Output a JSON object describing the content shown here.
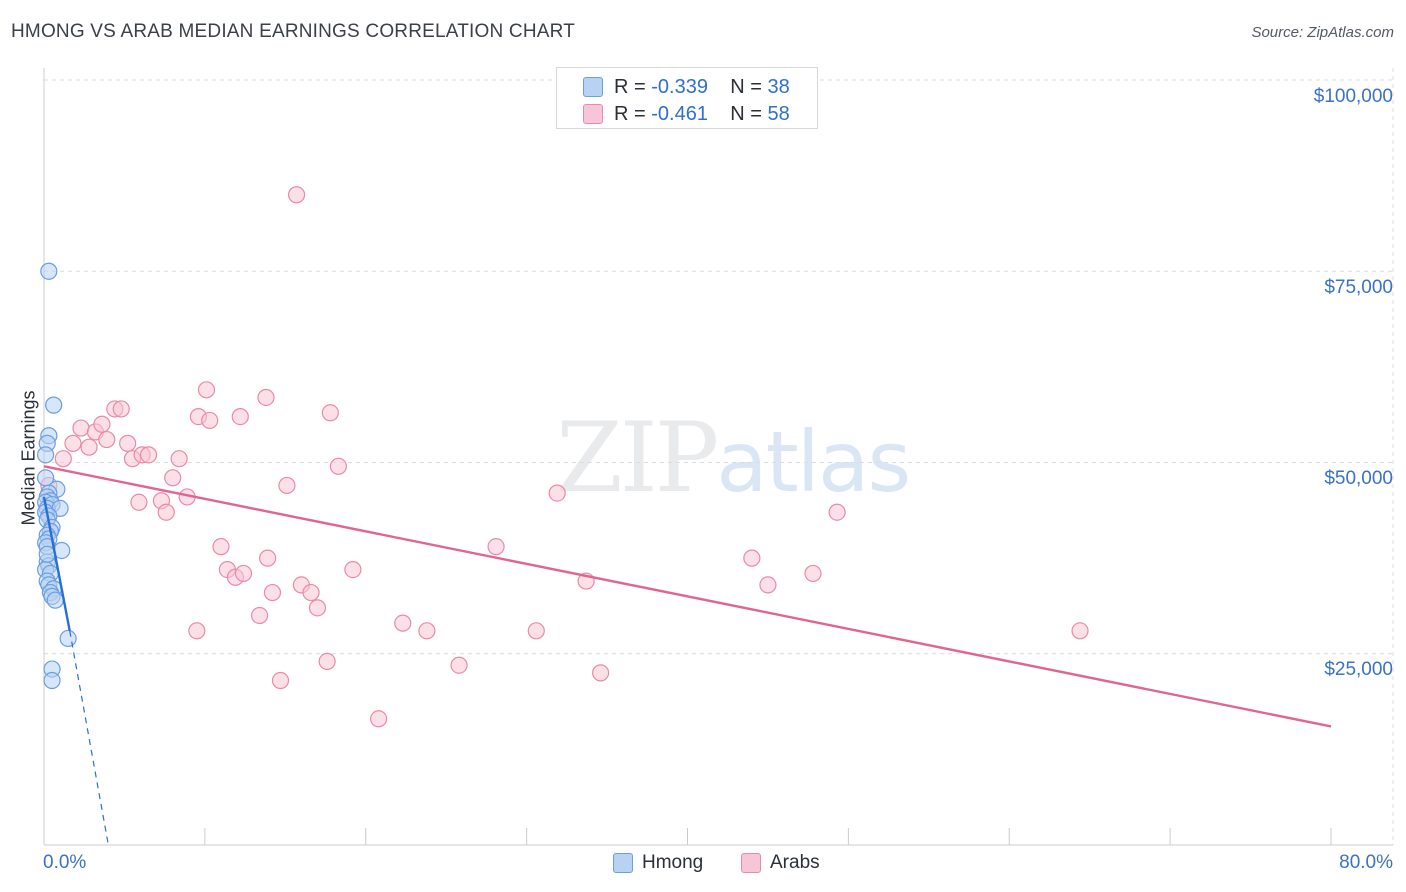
{
  "header": {
    "title": "HMONG VS ARAB MEDIAN EARNINGS CORRELATION CHART",
    "source": "Source: ZipAtlas.com"
  },
  "watermark": {
    "zip": "ZIP",
    "atlas": "atlas"
  },
  "legend_top": {
    "rows": [
      {
        "r_label": "R =",
        "r_value": "-0.339",
        "n_label": "N =",
        "n_value": "38"
      },
      {
        "r_label": "R =",
        "r_value": "-0.461",
        "n_label": "N =",
        "n_value": "58"
      }
    ]
  },
  "legend_bottom": {
    "hmong": "Hmong",
    "arabs": "Arabs"
  },
  "axes": {
    "ylabel": "Median Earnings",
    "yticks": [
      "$100,000",
      "$75,000",
      "$50,000",
      "$25,000"
    ],
    "x_start_label": "0.0%",
    "x_end_label": "80.0%"
  },
  "colors": {
    "hmong": "#6a9fe0",
    "hmong_fill": "#b8d2f4",
    "hmong_line": "#2a6fd4",
    "arabs": "#e98aa9",
    "arabs_fill": "#f7c6d6",
    "arabs_line": "#e0658f",
    "grid": "#d9dce1",
    "tick_text": "#3a72c9"
  },
  "chart_data": {
    "type": "scatter",
    "title": "HMONG VS ARAB MEDIAN EARNINGS CORRELATION CHART",
    "xlabel": "",
    "ylabel": "Median Earnings",
    "xlim": [
      0,
      80
    ],
    "ylim": [
      0,
      100000
    ],
    "yticks": [
      25000,
      50000,
      75000,
      100000
    ],
    "grid": true,
    "series": [
      {
        "name": "Hmong",
        "R": -0.339,
        "N": 38,
        "points": [
          [
            0.3,
            75000
          ],
          [
            0.6,
            57500
          ],
          [
            0.3,
            53500
          ],
          [
            0.2,
            52500
          ],
          [
            0.1,
            51000
          ],
          [
            0.1,
            48000
          ],
          [
            0.8,
            46500
          ],
          [
            0.3,
            46000
          ],
          [
            0.2,
            45500
          ],
          [
            0.4,
            45000
          ],
          [
            0.1,
            44800
          ],
          [
            0.5,
            44500
          ],
          [
            0.2,
            44000
          ],
          [
            1.0,
            44000
          ],
          [
            0.1,
            43500
          ],
          [
            0.3,
            43000
          ],
          [
            0.2,
            42500
          ],
          [
            0.5,
            41500
          ],
          [
            0.4,
            41000
          ],
          [
            0.2,
            40500
          ],
          [
            0.3,
            40000
          ],
          [
            0.1,
            39500
          ],
          [
            0.2,
            39000
          ],
          [
            1.1,
            38500
          ],
          [
            0.2,
            37000
          ],
          [
            0.3,
            36500
          ],
          [
            0.1,
            36000
          ],
          [
            0.4,
            35500
          ],
          [
            0.2,
            34500
          ],
          [
            0.3,
            34000
          ],
          [
            0.6,
            33500
          ],
          [
            0.4,
            33000
          ],
          [
            0.5,
            32500
          ],
          [
            0.7,
            32000
          ],
          [
            1.5,
            27000
          ],
          [
            0.5,
            23000
          ],
          [
            0.5,
            21500
          ],
          [
            0.2,
            38000
          ]
        ],
        "trend": {
          "x0": 0,
          "y0": 45500,
          "x1": 1.6,
          "y1": 28000,
          "dash_to": [
            4.0,
            0
          ]
        }
      },
      {
        "name": "Arabs",
        "R": -0.461,
        "N": 58,
        "points": [
          [
            0.3,
            47000
          ],
          [
            0.4,
            41000
          ],
          [
            1.2,
            50500
          ],
          [
            1.8,
            52500
          ],
          [
            2.3,
            54500
          ],
          [
            2.8,
            52000
          ],
          [
            3.2,
            54000
          ],
          [
            3.6,
            55000
          ],
          [
            3.9,
            53000
          ],
          [
            4.4,
            57000
          ],
          [
            4.8,
            57000
          ],
          [
            5.2,
            52500
          ],
          [
            5.5,
            50500
          ],
          [
            6.1,
            51000
          ],
          [
            6.5,
            51000
          ],
          [
            5.9,
            44800
          ],
          [
            7.3,
            45000
          ],
          [
            7.6,
            43500
          ],
          [
            8.4,
            50500
          ],
          [
            8.0,
            48000
          ],
          [
            8.9,
            45500
          ],
          [
            9.6,
            56000
          ],
          [
            10.3,
            55500
          ],
          [
            10.1,
            59500
          ],
          [
            11.0,
            39000
          ],
          [
            11.4,
            36000
          ],
          [
            11.9,
            35000
          ],
          [
            12.4,
            35500
          ],
          [
            12.2,
            56000
          ],
          [
            13.8,
            58500
          ],
          [
            13.9,
            37500
          ],
          [
            13.4,
            30000
          ],
          [
            14.2,
            33000
          ],
          [
            15.1,
            47000
          ],
          [
            16.0,
            34000
          ],
          [
            16.6,
            33000
          ],
          [
            17.0,
            31000
          ],
          [
            17.8,
            56500
          ],
          [
            18.3,
            49500
          ],
          [
            19.2,
            36000
          ],
          [
            14.7,
            21500
          ],
          [
            17.6,
            24000
          ],
          [
            20.8,
            16500
          ],
          [
            22.3,
            29000
          ],
          [
            23.8,
            28000
          ],
          [
            25.8,
            23500
          ],
          [
            28.1,
            39000
          ],
          [
            30.6,
            28000
          ],
          [
            31.9,
            46000
          ],
          [
            33.7,
            34500
          ],
          [
            34.6,
            22500
          ],
          [
            44.0,
            37500
          ],
          [
            45.0,
            34000
          ],
          [
            47.8,
            35500
          ],
          [
            49.3,
            43500
          ],
          [
            64.4,
            28000
          ],
          [
            9.5,
            28000
          ],
          [
            15.7,
            85000
          ]
        ],
        "trend": {
          "x0": 0,
          "y0": 49500,
          "x1": 80,
          "y1": 15500
        }
      }
    ]
  }
}
